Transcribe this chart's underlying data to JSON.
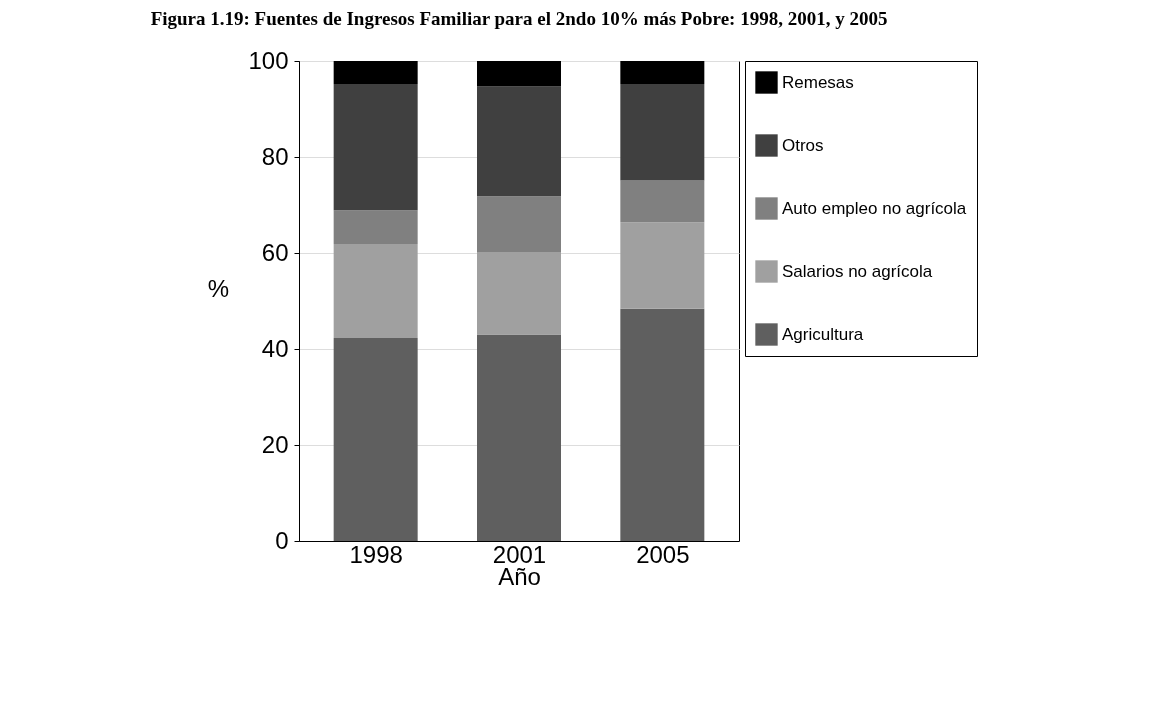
{
  "chart_data": {
    "type": "bar",
    "title": "Figura 1.19: Fuentes de Ingresos Familiar para el 2ndo 10% más Pobre: 1998, 2001, y 2005",
    "xlabel": "Año",
    "ylabel": "%",
    "categories": [
      "1998",
      "2001",
      "2005"
    ],
    "stacked": true,
    "series": [
      {
        "name": "Agricultura",
        "color": "#5f5f5f",
        "values": [
          42.3,
          43.0,
          48.4
        ]
      },
      {
        "name": "Salarios no agrícola",
        "color": "#a0a0a0",
        "values": [
          19.6,
          17.2,
          18.0
        ]
      },
      {
        "name": "Auto empleo no agrícola",
        "color": "#808080",
        "values": [
          7.0,
          11.6,
          8.7
        ]
      },
      {
        "name": "Otros",
        "color": "#404040",
        "values": [
          26.3,
          22.9,
          20.1
        ]
      },
      {
        "name": "Remesas",
        "color": "#000000",
        "values": [
          4.8,
          5.3,
          4.8
        ]
      }
    ],
    "ylim": [
      0,
      100
    ],
    "yticks": [
      0,
      20,
      40,
      60,
      80,
      100
    ],
    "grid": "y",
    "legend": "right"
  }
}
